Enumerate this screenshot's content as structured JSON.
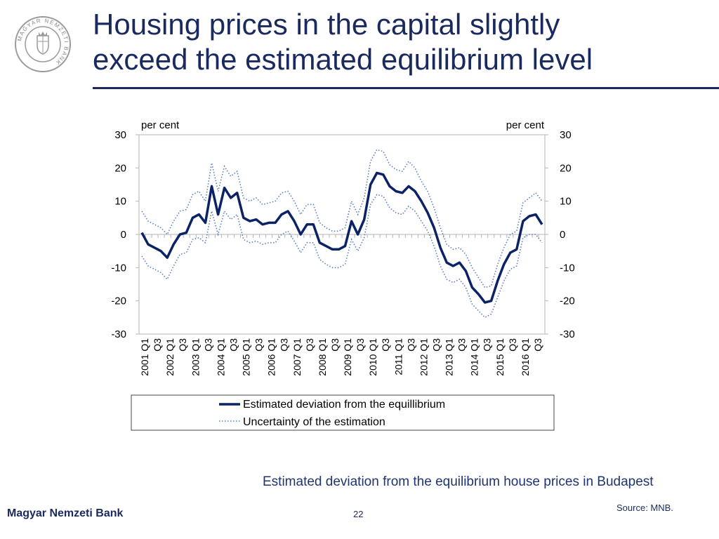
{
  "header": {
    "title_line1": "Housing prices in the capital slightly",
    "title_line2": "exceed the estimated equilibrium level",
    "logo_text": "MAGYAR NEMZETI BANK"
  },
  "colors": {
    "brand": "#1a2a5e",
    "main_series": "#0b2366",
    "band_series": "#5a7fc0"
  },
  "chart_data": {
    "type": "line",
    "ylabel_left": "per cent",
    "ylabel_right": "per cent",
    "ylim": [
      -30,
      30
    ],
    "yticks": [
      -30,
      -20,
      -10,
      0,
      10,
      20,
      30
    ],
    "x_tick_labels": [
      "2001 Q1",
      "Q3",
      "2002 Q1",
      "Q3",
      "2003 Q1",
      "Q3",
      "2004 Q1",
      "Q3",
      "2005 Q1",
      "Q3",
      "2006 Q1",
      "Q3",
      "2007 Q1",
      "Q3",
      "2008 Q1",
      "Q3",
      "2009 Q1",
      "Q3",
      "2010 Q1",
      "Q3",
      "2011 Q1",
      "Q3",
      "2012 Q1",
      "Q3",
      "2013 Q1",
      "Q3",
      "2014 Q1",
      "Q3",
      "2015 Q1",
      "Q3",
      "2016 Q1",
      "Q3"
    ],
    "series": [
      {
        "name": "Estimated deviation from the equillibrium",
        "style": "solid",
        "values": [
          0.5,
          -3,
          -4,
          -5,
          -7,
          -3,
          0,
          0.5,
          5,
          6,
          3.5,
          14.5,
          6,
          14,
          11,
          12.5,
          5,
          4,
          4.5,
          3,
          3.5,
          3.5,
          6,
          7,
          4,
          0,
          3,
          3,
          -2.5,
          -3.5,
          -4.5,
          -4.5,
          -3.5,
          4,
          0,
          4.5,
          15,
          18.5,
          18,
          14.5,
          13,
          12.5,
          14.5,
          13,
          10,
          6.5,
          2,
          -4,
          -8.5,
          -9.5,
          -8.5,
          -11,
          -16,
          -18,
          -20.5,
          -20,
          -14,
          -9,
          -5.5,
          -4.5,
          4,
          5.5,
          6,
          3
        ]
      },
      {
        "name": "Uncertainty of the estimation",
        "style": "dotted",
        "values_upper": [
          7,
          4,
          3,
          2,
          0,
          4,
          7,
          7.5,
          12,
          13,
          10,
          21.5,
          13,
          20.5,
          17.5,
          19,
          11,
          10,
          11,
          9,
          9.5,
          10,
          12.5,
          13,
          10,
          6,
          9,
          9,
          3.5,
          2,
          1,
          1,
          2,
          10,
          6,
          11,
          22,
          25.5,
          25,
          21,
          19.5,
          19,
          22,
          20,
          16,
          13,
          8,
          2,
          -3,
          -4.5,
          -4,
          -6,
          -10,
          -13,
          -16,
          -15.5,
          -9,
          -4,
          0,
          1,
          9.5,
          11,
          12.5,
          10
        ],
        "values_lower": [
          -6.5,
          -9.5,
          -10.5,
          -11.5,
          -13.5,
          -9.5,
          -6,
          -5.5,
          -1.5,
          -1,
          -2.5,
          7,
          0,
          7,
          4.5,
          6,
          -1.5,
          -2.5,
          -2,
          -3,
          -2.5,
          -2.5,
          0,
          1,
          -2,
          -5.5,
          -2.5,
          -2.5,
          -7.5,
          -9,
          -10,
          -10,
          -9,
          -1.5,
          -5,
          -1,
          9,
          12,
          11.5,
          8,
          6.5,
          6,
          8.5,
          7,
          4,
          1,
          -3.5,
          -9.5,
          -13.5,
          -14.5,
          -13.5,
          -16,
          -21,
          -23,
          -25,
          -24,
          -19,
          -14,
          -10.5,
          -9.5,
          -1,
          0,
          0,
          -2.5
        ]
      }
    ],
    "legend": [
      "Estimated deviation from the equillibrium",
      "Uncertainty of the estimation"
    ],
    "legend_position": "bottom"
  },
  "caption": {
    "subtitle": "Estimated deviation from the equilibrium house prices in Budapest",
    "source": "Source: MNB."
  },
  "footer": {
    "brand": "Magyar Nemzeti Bank",
    "page_number": "22"
  }
}
